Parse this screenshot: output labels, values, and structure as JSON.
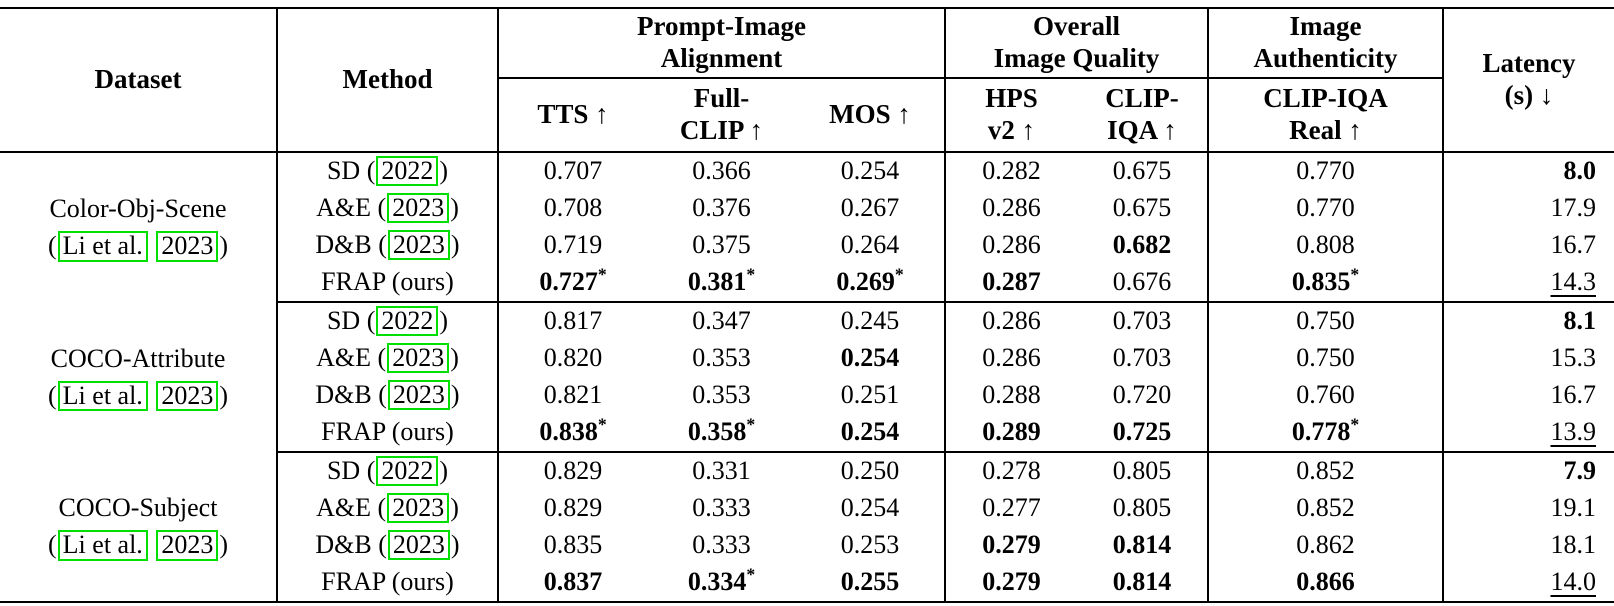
{
  "colors": {
    "citation_box": "#00e000",
    "rule": "#000000",
    "background": "#ffffff"
  },
  "header": {
    "dataset": "Dataset",
    "method": "Method",
    "latency": "Latency\n(s) ↓",
    "groups": [
      {
        "label": "Prompt-Image\nAlignment",
        "span": 3
      },
      {
        "label": "Overall\nImage Quality",
        "span": 2
      },
      {
        "label": "Image\nAuthenticity",
        "span": 1
      }
    ],
    "metrics": [
      "TTS ↑",
      "Full-\nCLIP ↑",
      "MOS ↑",
      "HPS\nv2 ↑",
      "CLIP-\nIQA ↑",
      "CLIP-IQA\nReal ↑"
    ]
  },
  "blocks": [
    {
      "dataset_name": "Color-Obj-Scene",
      "citation": {
        "open": "(",
        "author": "Li et al.",
        "year": "2023",
        "close": ")"
      },
      "rows": [
        {
          "method": {
            "pre": "SD (",
            "year": "2022",
            "post": ")"
          },
          "cells": [
            {
              "t": "0.707"
            },
            {
              "t": "0.366"
            },
            {
              "t": "0.254"
            },
            {
              "t": "0.282"
            },
            {
              "t": "0.675"
            },
            {
              "t": "0.770"
            },
            {
              "t": "8.0",
              "bold": true
            }
          ]
        },
        {
          "method": {
            "pre": "A&E (",
            "year": "2023",
            "post": ")"
          },
          "cells": [
            {
              "t": "0.708"
            },
            {
              "t": "0.376"
            },
            {
              "t": "0.267"
            },
            {
              "t": "0.286"
            },
            {
              "t": "0.675"
            },
            {
              "t": "0.770"
            },
            {
              "t": "17.9"
            }
          ]
        },
        {
          "method": {
            "pre": "D&B (",
            "year": "2023",
            "post": ")"
          },
          "cells": [
            {
              "t": "0.719"
            },
            {
              "t": "0.375"
            },
            {
              "t": "0.264"
            },
            {
              "t": "0.286"
            },
            {
              "t": "0.682",
              "bold": true
            },
            {
              "t": "0.808"
            },
            {
              "t": "16.7"
            }
          ]
        },
        {
          "method": {
            "pre": "FRAP (ours)"
          },
          "cells": [
            {
              "t": "0.727",
              "bold": true,
              "star": true
            },
            {
              "t": "0.381",
              "bold": true,
              "star": true
            },
            {
              "t": "0.269",
              "bold": true,
              "star": true
            },
            {
              "t": "0.287",
              "bold": true
            },
            {
              "t": "0.676"
            },
            {
              "t": "0.835",
              "bold": true,
              "star": true
            },
            {
              "t": "14.3",
              "underline": true
            }
          ]
        }
      ]
    },
    {
      "dataset_name": "COCO-Attribute",
      "citation": {
        "open": "(",
        "author": "Li et al.",
        "year": "2023",
        "close": ")"
      },
      "rows": [
        {
          "method": {
            "pre": "SD (",
            "year": "2022",
            "post": ")"
          },
          "cells": [
            {
              "t": "0.817"
            },
            {
              "t": "0.347"
            },
            {
              "t": "0.245"
            },
            {
              "t": "0.286"
            },
            {
              "t": "0.703"
            },
            {
              "t": "0.750"
            },
            {
              "t": "8.1",
              "bold": true
            }
          ]
        },
        {
          "method": {
            "pre": "A&E (",
            "year": "2023",
            "post": ")"
          },
          "cells": [
            {
              "t": "0.820"
            },
            {
              "t": "0.353"
            },
            {
              "t": "0.254",
              "bold": true
            },
            {
              "t": "0.286"
            },
            {
              "t": "0.703"
            },
            {
              "t": "0.750"
            },
            {
              "t": "15.3"
            }
          ]
        },
        {
          "method": {
            "pre": "D&B (",
            "year": "2023",
            "post": ")"
          },
          "cells": [
            {
              "t": "0.821"
            },
            {
              "t": "0.353"
            },
            {
              "t": "0.251"
            },
            {
              "t": "0.288"
            },
            {
              "t": "0.720"
            },
            {
              "t": "0.760"
            },
            {
              "t": "16.7"
            }
          ]
        },
        {
          "method": {
            "pre": "FRAP (ours)"
          },
          "cells": [
            {
              "t": "0.838",
              "bold": true,
              "star": true
            },
            {
              "t": "0.358",
              "bold": true,
              "star": true
            },
            {
              "t": "0.254",
              "bold": true
            },
            {
              "t": "0.289",
              "bold": true
            },
            {
              "t": "0.725",
              "bold": true
            },
            {
              "t": "0.778",
              "bold": true,
              "star": true
            },
            {
              "t": "13.9",
              "underline": true
            }
          ]
        }
      ]
    },
    {
      "dataset_name": "COCO-Subject",
      "citation": {
        "open": "(",
        "author": "Li et al.",
        "year": "2023",
        "close": ")"
      },
      "rows": [
        {
          "method": {
            "pre": "SD (",
            "year": "2022",
            "post": ")"
          },
          "cells": [
            {
              "t": "0.829"
            },
            {
              "t": "0.331"
            },
            {
              "t": "0.250"
            },
            {
              "t": "0.278"
            },
            {
              "t": "0.805"
            },
            {
              "t": "0.852"
            },
            {
              "t": "7.9",
              "bold": true
            }
          ]
        },
        {
          "method": {
            "pre": "A&E (",
            "year": "2023",
            "post": ")"
          },
          "cells": [
            {
              "t": "0.829"
            },
            {
              "t": "0.333"
            },
            {
              "t": "0.254"
            },
            {
              "t": "0.277"
            },
            {
              "t": "0.805"
            },
            {
              "t": "0.852"
            },
            {
              "t": "19.1"
            }
          ]
        },
        {
          "method": {
            "pre": "D&B (",
            "year": "2023",
            "post": ")"
          },
          "cells": [
            {
              "t": "0.835"
            },
            {
              "t": "0.333"
            },
            {
              "t": "0.253"
            },
            {
              "t": "0.279",
              "bold": true
            },
            {
              "t": "0.814",
              "bold": true
            },
            {
              "t": "0.862"
            },
            {
              "t": "18.1"
            }
          ]
        },
        {
          "method": {
            "pre": "FRAP (ours)"
          },
          "cells": [
            {
              "t": "0.837",
              "bold": true
            },
            {
              "t": "0.334",
              "bold": true,
              "star": true
            },
            {
              "t": "0.255",
              "bold": true
            },
            {
              "t": "0.279",
              "bold": true
            },
            {
              "t": "0.814",
              "bold": true
            },
            {
              "t": "0.866",
              "bold": true
            },
            {
              "t": "14.0",
              "underline": true
            }
          ]
        }
      ]
    }
  ]
}
